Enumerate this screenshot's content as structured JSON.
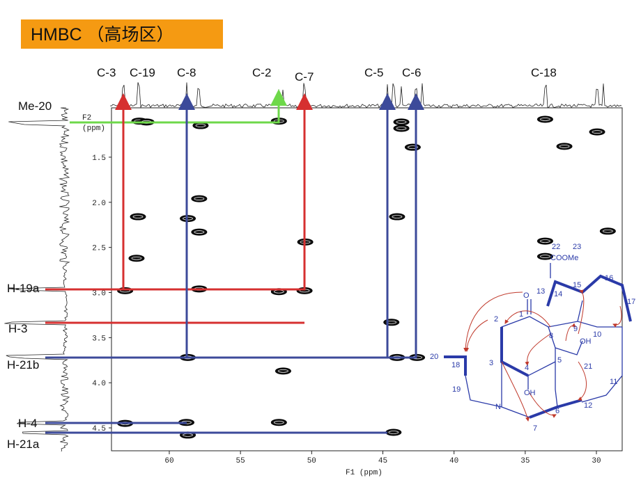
{
  "title": "HMBC （高场区）",
  "carbons": [
    "C-3",
    "C-19",
    "C-8",
    "C-2",
    "C-7",
    "C-5",
    "C-6",
    "C-18"
  ],
  "protons": [
    "Me-20",
    "H-19a",
    "H-3",
    "H-21b",
    "H-4",
    "H-21a"
  ],
  "spectrum": {
    "x_label": "F1 (ppm)",
    "y_label_top": "F2",
    "y_label_unit": "(ppm)",
    "xlim": [
      64.06,
      28.19
    ],
    "ylim": [
      0.953,
      4.754
    ],
    "xticks": [
      60,
      55,
      50,
      45,
      40,
      35,
      30
    ],
    "yticks": [
      1.5,
      {
        "value": 2.0,
        "label": "2.0"
      },
      2.5,
      {
        "value": 3.0,
        "label": "3.0"
      },
      3.5,
      {
        "value": 4.0,
        "label": "4.0"
      },
      4.5
    ],
    "peaks": [
      [
        62.1,
        1.1
      ],
      [
        61.6,
        1.11
      ],
      [
        52.3,
        1.1
      ],
      [
        57.8,
        1.15
      ],
      [
        43.7,
        1.11
      ],
      [
        43.7,
        1.18
      ],
      [
        42.9,
        1.39
      ],
      [
        33.6,
        1.08
      ],
      [
        29.95,
        1.22
      ],
      [
        32.25,
        1.38
      ],
      [
        62.2,
        2.16
      ],
      [
        57.9,
        1.96
      ],
      [
        58.7,
        2.18
      ],
      [
        57.9,
        2.33
      ],
      [
        50.45,
        2.44
      ],
      [
        29.2,
        2.32
      ],
      [
        44.0,
        2.16
      ],
      [
        33.6,
        2.43
      ],
      [
        62.3,
        2.62
      ],
      [
        33.6,
        2.6
      ],
      [
        63.1,
        2.98
      ],
      [
        57.9,
        2.96
      ],
      [
        52.3,
        2.99
      ],
      [
        50.5,
        2.98
      ],
      [
        44.4,
        3.33
      ],
      [
        58.7,
        3.72
      ],
      [
        44.0,
        3.72
      ],
      [
        42.6,
        3.72
      ],
      [
        52.0,
        3.87
      ],
      [
        63.1,
        4.45
      ],
      [
        58.8,
        4.44
      ],
      [
        52.3,
        4.44
      ],
      [
        58.7,
        4.58
      ],
      [
        44.25,
        4.55
      ]
    ]
  },
  "structure": {
    "atoms": [
      "22",
      "23",
      "COOMe",
      "13",
      "14",
      "15",
      "16",
      "17",
      "O",
      "1",
      "2",
      "9",
      "10",
      "8",
      "OH",
      "20",
      "18",
      "3",
      "5",
      "21",
      "4",
      "11",
      "19",
      "OH",
      "12",
      "N",
      "6",
      "7"
    ]
  }
}
